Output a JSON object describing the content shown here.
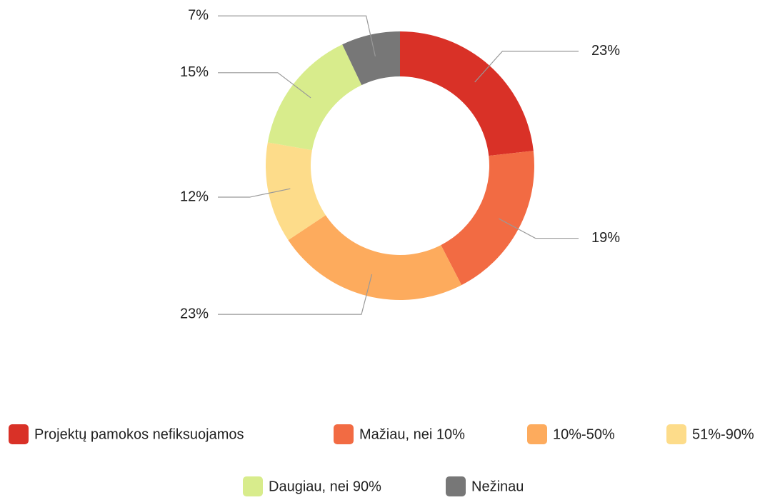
{
  "chart_data": {
    "type": "donut",
    "categories": [
      "Projektų pamokos nefiksuojamos",
      "Mažiau, nei 10%",
      "10%-50%",
      "51%-90%",
      "Daugiau, nei 90%",
      "Nežinau"
    ],
    "values": [
      23,
      19,
      23,
      12,
      15,
      7
    ],
    "value_labels": [
      "23%",
      "19%",
      "23%",
      "12%",
      "15%",
      "7%"
    ],
    "colors": [
      "#d93127",
      "#f26b43",
      "#fdab5d",
      "#fddc8a",
      "#d8ec8c",
      "#777777"
    ],
    "legend": "bottom"
  }
}
